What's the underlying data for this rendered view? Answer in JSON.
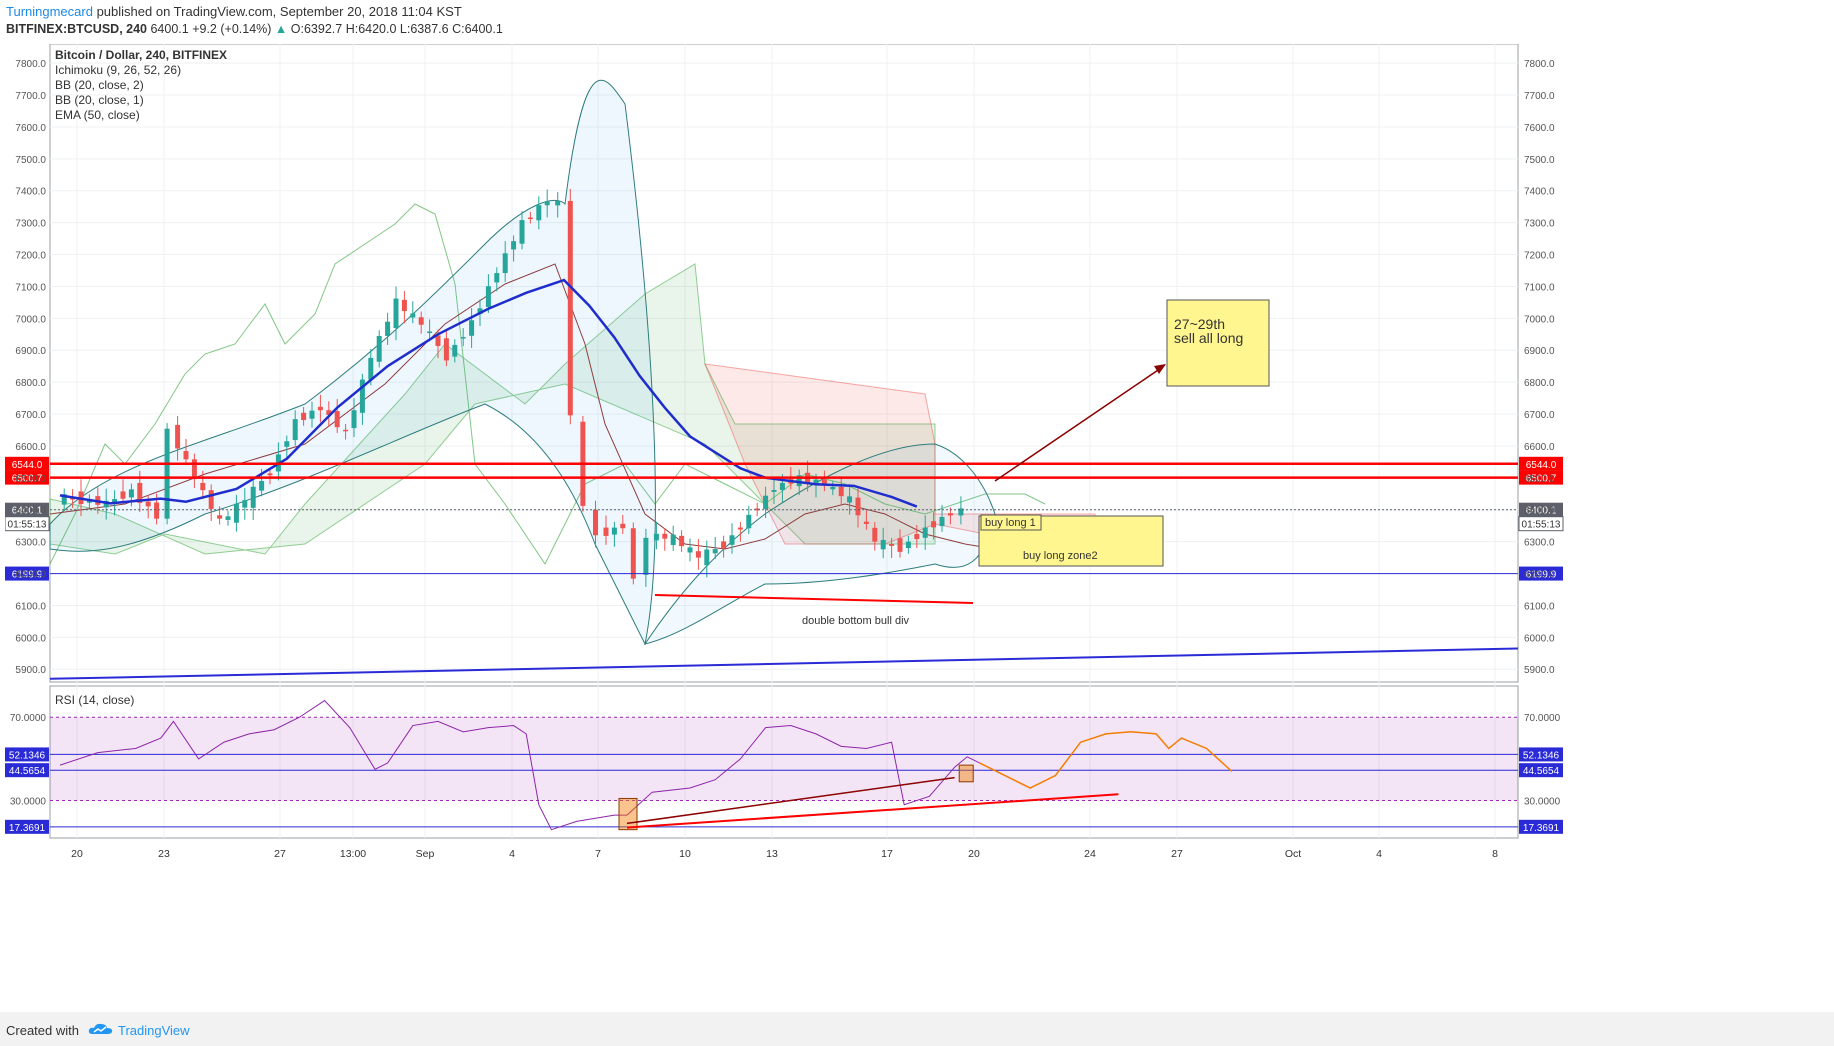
{
  "header": {
    "author": "Turningmecard",
    "published": "published on TradingView.com, September 20, 2018 11:04 KST",
    "symbol": "BITFINEX:BTCUSD, 240",
    "last": "6400.1",
    "change": "+9.2 (+0.14%)",
    "o_label": "O:",
    "o": "6392.7",
    "h_label": "H:",
    "h": "6420.0",
    "l_label": "L:",
    "l": "6387.6",
    "c_label": "C:",
    "c": "6400.1"
  },
  "legend": {
    "title": "Bitcoin / Dollar, 240, BITFINEX",
    "indicators": [
      "Ichimoku (9, 26, 52, 26)",
      "BB (20, close, 2)",
      "BB (20, close, 1)",
      "EMA (50, close)"
    ],
    "rsi": "RSI (14, close)"
  },
  "annotations": {
    "target_line1": "27~29th",
    "target_line2": "sell all long",
    "buy1": "buy long 1",
    "buy2": "buy long zone2",
    "divergence": "double bottom bull div"
  },
  "footer": {
    "created": "Created with",
    "brand": "TradingView"
  },
  "colors": {
    "up": "#26a69a",
    "down": "#ef5350",
    "ema": "#1f2dcc",
    "resistance": "#ff0000",
    "support": "#2a2ad6",
    "rsi": "#8e24aa",
    "rsi_projection": "#f57c00",
    "note_bg": "#fff68f",
    "price_badge": "#5d606b"
  },
  "chart_data": [
    {
      "type": "candlestick",
      "title": "Bitcoin / Dollar, 240, BITFINEX",
      "ylim": [
        5860,
        7860
      ],
      "y_ticks": [
        5900,
        6000,
        6100,
        6200,
        6300,
        6400,
        6500,
        6600,
        6700,
        6800,
        6900,
        7000,
        7100,
        7200,
        7300,
        7400,
        7500,
        7600,
        7700,
        7800
      ],
      "x_ticks": [
        "20",
        "23",
        "27",
        "13:00",
        "Sep",
        "4",
        "7",
        "10",
        "13",
        "17",
        "20",
        "24",
        "27",
        "Oct",
        "4",
        "8"
      ],
      "horizontal_lines": [
        {
          "value": 6544.0,
          "label": "6544.0",
          "color": "#ff0000"
        },
        {
          "value": 6500.7,
          "label": "6500.7",
          "color": "#ff0000"
        },
        {
          "value": 6400.1,
          "label": "6400.1",
          "color": "#5d606b"
        },
        {
          "value": 6199.9,
          "label": "6199.9",
          "color": "#2a2ad6"
        }
      ],
      "countdown": "01:55:13",
      "ema_50": [
        [
          0,
          6445
        ],
        [
          4,
          6420
        ],
        [
          8,
          6435
        ],
        [
          10,
          6425
        ],
        [
          14,
          6465
        ],
        [
          18,
          6560
        ],
        [
          22,
          6720
        ],
        [
          26,
          6850
        ],
        [
          30,
          6950
        ],
        [
          34,
          7030
        ],
        [
          37,
          7080
        ],
        [
          40,
          7120
        ],
        [
          42,
          7040
        ],
        [
          44,
          6940
        ],
        [
          46,
          6820
        ],
        [
          48,
          6720
        ],
        [
          50,
          6630
        ],
        [
          54,
          6530
        ],
        [
          56,
          6500
        ],
        [
          60,
          6480
        ],
        [
          63,
          6475
        ],
        [
          66,
          6440
        ],
        [
          68,
          6410
        ]
      ],
      "ohlc_segments": [
        {
          "day": 0,
          "values": [
            6420,
            6480,
            6380,
            6440
          ]
        },
        {
          "day": 4,
          "values": [
            6380,
            6700,
            6280,
            6400
          ]
        },
        {
          "day": 10,
          "values": [
            6600,
            7080,
            6550,
            7050
          ]
        },
        {
          "day": 14,
          "values": [
            6900,
            7350,
            6860,
            7330
          ]
        },
        {
          "day": 18,
          "values": [
            7380,
            7400,
            6450,
            6500
          ]
        },
        {
          "day": 24,
          "values": [
            6420,
            6450,
            6150,
            6320
          ]
        },
        {
          "day": 32,
          "values": [
            6390,
            6600,
            6350,
            6500
          ]
        },
        {
          "day": 38,
          "values": [
            6480,
            6520,
            6240,
            6400
          ]
        }
      ],
      "trendline_support": [
        [
          0,
          5870
        ],
        [
          100,
          5965
        ]
      ]
    },
    {
      "type": "line",
      "title": "RSI (14, close)",
      "ylim": [
        12,
        85
      ],
      "y_ticks": [
        30.0,
        70.0
      ],
      "horizontal_lines": [
        {
          "value": 52.1346,
          "label": "52.1346"
        },
        {
          "value": 44.5654,
          "label": "44.5654"
        },
        {
          "value": 17.3691,
          "label": "17.3691"
        }
      ],
      "series": [
        {
          "values": [
            [
              0,
              47
            ],
            [
              3,
              53
            ],
            [
              6,
              55
            ],
            [
              8,
              60
            ],
            [
              9,
              68
            ],
            [
              11,
              50
            ],
            [
              13,
              58
            ],
            [
              15,
              62
            ],
            [
              17,
              64
            ],
            [
              19,
              70
            ],
            [
              21,
              78
            ],
            [
              23,
              65
            ],
            [
              25,
              45
            ],
            [
              26,
              48
            ],
            [
              28,
              66
            ],
            [
              30,
              68
            ],
            [
              32,
              63
            ],
            [
              34,
              65
            ],
            [
              36,
              66
            ],
            [
              37,
              62
            ],
            [
              38,
              28
            ],
            [
              39,
              16
            ],
            [
              41,
              20
            ],
            [
              44,
              23
            ],
            [
              45,
              23
            ],
            [
              47,
              34
            ],
            [
              50,
              36
            ],
            [
              52,
              40
            ],
            [
              54,
              50
            ],
            [
              56,
              65
            ],
            [
              58,
              66
            ],
            [
              60,
              62
            ],
            [
              62,
              56
            ],
            [
              64,
              55
            ],
            [
              66,
              58
            ],
            [
              67,
              28
            ],
            [
              69,
              32
            ],
            [
              71,
              46
            ],
            [
              72,
              51
            ],
            [
              73,
              48
            ]
          ]
        },
        {
          "values": [
            [
              73,
              48
            ],
            [
              75,
              42
            ],
            [
              77,
              36
            ],
            [
              79,
              42
            ],
            [
              81,
              58
            ],
            [
              83,
              62
            ],
            [
              85,
              63
            ],
            [
              87,
              62
            ],
            [
              88,
              55
            ],
            [
              89,
              60
            ],
            [
              91,
              55
            ],
            [
              93,
              44
            ]
          ]
        }
      ]
    }
  ]
}
